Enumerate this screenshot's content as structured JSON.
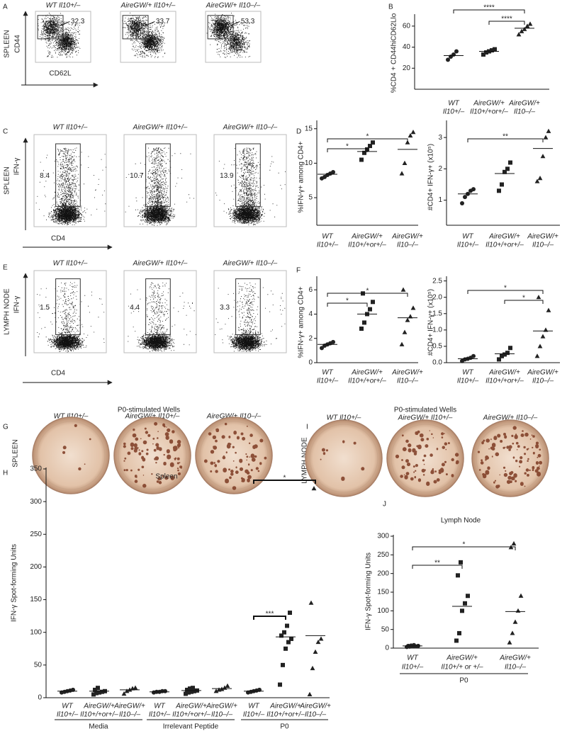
{
  "flow_panels": [
    {
      "label": "A",
      "row_label": "SPLEEN",
      "y_axis": "CD44",
      "x_axis": "CD62L",
      "plots": [
        {
          "title": "WT Il10+/–",
          "gate": 32.3
        },
        {
          "title": "AireGW/+ Il10+/–",
          "gate": 33.7
        },
        {
          "title": "AireGW/+ Il10–/–",
          "gate": 53.3
        }
      ]
    },
    {
      "label": "C",
      "row_label": "SPLEEN",
      "y_axis": "IFN-γ",
      "x_axis": "CD4",
      "plots": [
        {
          "title": "WT Il10+/–",
          "gate": 8.4
        },
        {
          "title": "AireGW/+ Il10+/–",
          "gate": 10.7
        },
        {
          "title": "AireGW/+ Il10–/–",
          "gate": 13.9
        }
      ]
    },
    {
      "label": "E",
      "row_label": "LYMPH NODE",
      "y_axis": "IFN-γ",
      "x_axis": "CD4",
      "plots": [
        {
          "title": "WT Il10+/–",
          "gate": 1.5
        },
        {
          "title": "AireGW/+ Il10+/–",
          "gate": 4.4
        },
        {
          "title": "AireGW/+ Il10–/–",
          "gate": 3.3
        }
      ]
    }
  ],
  "well_panels": [
    {
      "label": "G",
      "title": "P0-stimulated Wells",
      "row_label": "SPLEEN",
      "wells": [
        "WT Il10+/–",
        "AireGW/+ Il10+/–",
        "AireGW/+ Il10–/–"
      ]
    },
    {
      "label": "I",
      "title": "P0-stimulated Wells",
      "row_label": "LYMPH NODE",
      "wells": [
        "WT Il10+/–",
        "AireGW/+ Il10+/–",
        "AireGW/+ Il10–/–"
      ]
    }
  ],
  "chart_data": [
    {
      "type": "strip",
      "label": "B",
      "ylabel": "%CD4 + CD44hiCD62Llo",
      "categories": [
        [
          "WT",
          "Il10+/–"
        ],
        [
          "AireGW/+",
          "Il10+/+or+/–"
        ],
        [
          "AireGW/+",
          "Il10–/–"
        ]
      ],
      "markers": [
        "circle",
        "square",
        "triangle"
      ],
      "values": [
        [
          28,
          31,
          33,
          36
        ],
        [
          33,
          35,
          36,
          37,
          38
        ],
        [
          52,
          55,
          57,
          60,
          62
        ]
      ],
      "means": [
        32,
        36,
        58
      ],
      "ylim": [
        0,
        70
      ],
      "yticks": [
        20,
        40,
        60
      ],
      "comparisons": [
        {
          "from": 0,
          "to": 2,
          "label": "****"
        },
        {
          "from": 1,
          "to": 2,
          "label": "****"
        }
      ]
    },
    {
      "type": "strip",
      "label": "D",
      "ylabel": "%IFN-γ+ among CD4+",
      "categories": [
        [
          "WT",
          "Il10+/–"
        ],
        [
          "AireGW/+",
          "Il10+/+or+/–"
        ],
        [
          "AireGW/+",
          "Il10–/–"
        ]
      ],
      "markers": [
        "circle",
        "square",
        "triangle"
      ],
      "values": [
        [
          7.8,
          8,
          8.3,
          8.5,
          8.7
        ],
        [
          10.5,
          11.5,
          12,
          12.5,
          13
        ],
        [
          8.5,
          10,
          13,
          14,
          14.5
        ]
      ],
      "means": [
        8.4,
        11.7,
        12
      ],
      "ylim": [
        1,
        16
      ],
      "yticks": [
        5,
        10,
        15
      ],
      "comparisons": [
        {
          "from": 0,
          "to": 2,
          "label": "*"
        },
        {
          "from": 0,
          "to": 1,
          "label": "*"
        }
      ]
    },
    {
      "type": "strip",
      "ylabel": "#CD4+ IFN-γ+ (x10⁵)",
      "categories": [
        [
          "WT",
          "Il10+/–"
        ],
        [
          "AireGW/+",
          "Il10+/+or+/–"
        ],
        [
          "AireGW/+",
          "Il10–/–"
        ]
      ],
      "markers": [
        "circle",
        "square",
        "triangle"
      ],
      "values": [
        [
          0.9,
          1.1,
          1.2,
          1.3,
          1.35
        ],
        [
          1.3,
          1.5,
          1.9,
          2,
          2.2
        ],
        [
          1.6,
          1.7,
          2.4,
          3,
          3.2
        ]
      ],
      "means": [
        1.2,
        1.85,
        2.65
      ],
      "ylim": [
        0.2,
        3.5
      ],
      "yticks": [
        1,
        2,
        3
      ],
      "comparisons": [
        {
          "from": 0,
          "to": 2,
          "label": "**"
        }
      ]
    },
    {
      "type": "strip",
      "label": "F",
      "ylabel": "%IFN-γ+ among CD4+",
      "categories": [
        [
          "WT",
          "Il10+/–"
        ],
        [
          "AireGW/+",
          "Il10+/+or+/–"
        ],
        [
          "AireGW/+",
          "Il10–/–"
        ]
      ],
      "markers": [
        "circle",
        "square",
        "triangle"
      ],
      "values": [
        [
          1.2,
          1.4,
          1.5,
          1.6,
          1.7
        ],
        [
          2.8,
          3.3,
          4,
          4.4,
          5,
          5.7
        ],
        [
          1.5,
          2.5,
          3.5,
          3.8,
          4.5,
          6
        ]
      ],
      "means": [
        1.5,
        4,
        3.7
      ],
      "ylim": [
        0,
        7
      ],
      "yticks": [
        0,
        2,
        4,
        6
      ],
      "comparisons": [
        {
          "from": 0,
          "to": 1,
          "label": "*"
        },
        {
          "from": 0,
          "to": 2,
          "label": "*"
        }
      ]
    },
    {
      "type": "strip",
      "ylabel": "#CD4+ IFN-γ+ (x10⁵)",
      "categories": [
        [
          "WT",
          "Il10+/–"
        ],
        [
          "AireGW/+",
          "Il10+/+or+/–"
        ],
        [
          "AireGW/+",
          "Il10–/–"
        ]
      ],
      "markers": [
        "circle",
        "square",
        "triangle"
      ],
      "values": [
        [
          0.05,
          0.1,
          0.12,
          0.15,
          0.2
        ],
        [
          0.1,
          0.2,
          0.25,
          0.3,
          0.45
        ],
        [
          0.2,
          0.5,
          0.8,
          1,
          1.6,
          2
        ]
      ],
      "means": [
        0.12,
        0.27,
        0.97
      ],
      "ylim": [
        0,
        2.6
      ],
      "yticks": [
        {
          "value": 0,
          "label": "0.0"
        },
        0.5,
        {
          "value": 1,
          "label": "1.0"
        },
        1.5,
        {
          "value": 2,
          "label": "2.0"
        },
        2.5
      ],
      "comparisons": [
        {
          "from": 0,
          "to": 2,
          "label": "*"
        },
        {
          "from": 1,
          "to": 2,
          "label": "*"
        }
      ]
    },
    {
      "type": "strip",
      "label": "H",
      "title": "Spleen",
      "ylabel": "IFN-γ Spot-forming Units",
      "categories": [
        [
          "WT",
          "Il10+/–"
        ],
        [
          "AireGW/+",
          "Il10+/+or+/–"
        ],
        [
          "AireGW/+",
          "Il10–/–"
        ],
        [
          "WT",
          "Il10+/–"
        ],
        [
          "AireGW/+",
          "Il10+/+or+/–"
        ],
        [
          "AireGW/+",
          "Il10–/–"
        ],
        [
          "WT",
          "Il10+/–"
        ],
        [
          "AireGW/+",
          "Il10+/+or+/–"
        ],
        [
          "AireGW/+",
          "Il10–/–"
        ]
      ],
      "markers": [
        "circle",
        "square",
        "triangle",
        "circle",
        "square",
        "triangle",
        "circle",
        "square",
        "triangle"
      ],
      "values": [
        [
          8,
          9,
          10,
          11,
          12
        ],
        [
          5,
          7,
          8,
          9,
          10,
          12,
          15
        ],
        [
          6,
          10,
          12,
          14,
          15
        ],
        [
          8,
          9,
          9,
          10,
          10
        ],
        [
          6,
          8,
          9,
          10,
          11,
          12,
          14,
          15
        ],
        [
          10,
          12,
          13,
          15,
          18
        ],
        [
          8,
          9,
          10,
          11,
          12
        ],
        [
          20,
          50,
          75,
          85,
          90,
          95,
          100,
          110,
          130
        ],
        [
          5,
          45,
          70,
          85,
          90,
          145,
          320
        ]
      ],
      "means": [
        10,
        10,
        12,
        9,
        11,
        14,
        10,
        93,
        95
      ],
      "ylim": [
        0,
        350
      ],
      "yticks": [
        0,
        50,
        100,
        150,
        200,
        250,
        300,
        350
      ],
      "groups": [
        {
          "label": "Media",
          "from": 0,
          "to": 2
        },
        {
          "label": "Irrelevant Peptide",
          "from": 3,
          "to": 5
        },
        {
          "label": "P0",
          "from": 6,
          "to": 8
        }
      ],
      "comparisons": [
        {
          "from": 6,
          "to": 7,
          "label": "***"
        },
        {
          "from": 6,
          "to": 8,
          "label": "*"
        }
      ]
    },
    {
      "type": "strip",
      "label": "J",
      "title": "Lymph Node",
      "ylabel": "IFN-γ Spot-forming Units",
      "categories": [
        [
          "WT",
          "Il10+/–"
        ],
        [
          "AireGW/+",
          "Il10+/+ or +/–"
        ],
        [
          "AireGW/+",
          "Il10–/–"
        ]
      ],
      "markers": [
        "circle",
        "square",
        "triangle"
      ],
      "values": [
        [
          3,
          4,
          5,
          5,
          6,
          6,
          7,
          8
        ],
        [
          20,
          40,
          100,
          120,
          140,
          195,
          230
        ],
        [
          15,
          40,
          70,
          100,
          140,
          270,
          280
        ]
      ],
      "means": [
        6,
        112,
        98
      ],
      "ylim": [
        0,
        300
      ],
      "yticks": [
        0,
        50,
        100,
        150,
        200,
        250,
        300
      ],
      "groups": [
        {
          "label": "P0",
          "from": 0,
          "to": 2
        }
      ],
      "comparisons": [
        {
          "from": 0,
          "to": 1,
          "label": "**"
        },
        {
          "from": 0,
          "to": 2,
          "label": "*"
        }
      ]
    }
  ]
}
